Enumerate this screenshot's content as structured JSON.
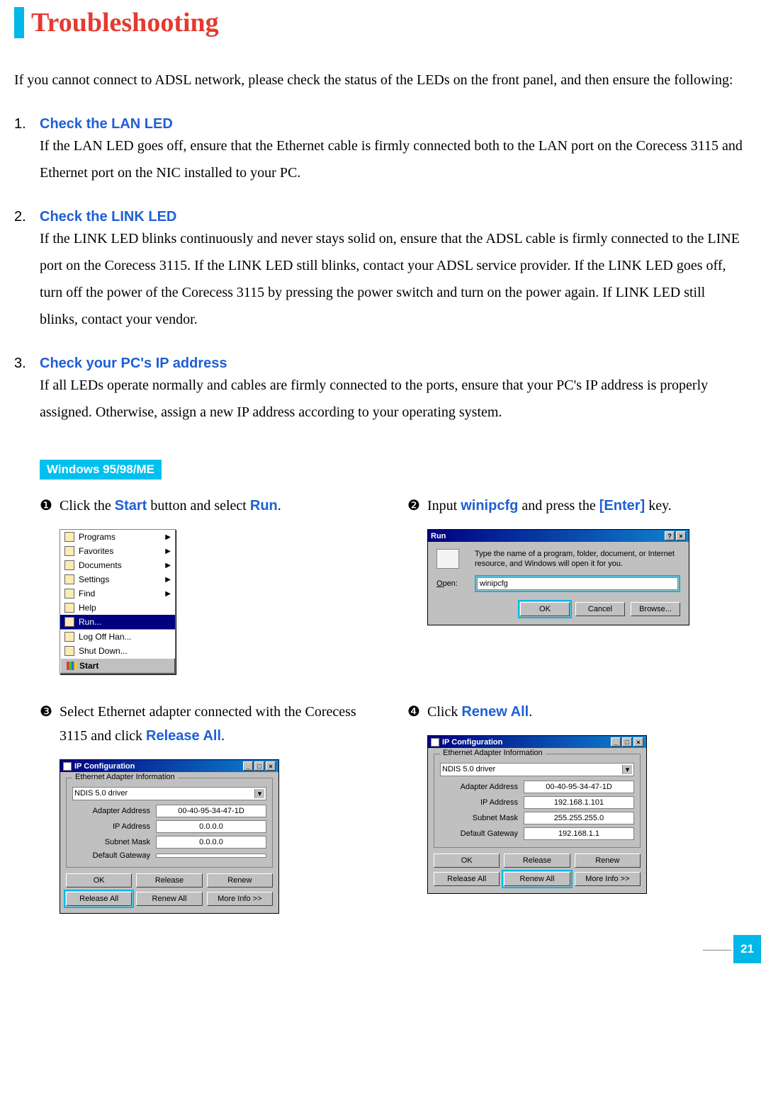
{
  "title": "Troubleshooting",
  "intro": "If you cannot connect to ADSL network, please check the status of the LEDs on the front panel, and then ensure the following:",
  "steps": [
    {
      "num": "1.",
      "title": "Check the LAN LED",
      "body": "If the LAN LED goes off, ensure that the Ethernet cable is firmly connected both to the LAN port on the Corecess 3115 and Ethernet port on the NIC installed to your PC."
    },
    {
      "num": "2.",
      "title": "Check the LINK LED",
      "body": "If the LINK LED blinks continuously and never stays solid on, ensure that the ADSL cable is firmly connected to the LINE port on the Corecess 3115. If the LINK LED still blinks, contact your ADSL service provider. If the LINK LED goes off, turn off the power of the Corecess 3115 by pressing the power switch and turn on the power again. If LINK LED still blinks, contact your vendor."
    },
    {
      "num": "3.",
      "title": "Check your PC's IP address",
      "body": "If all LEDs operate normally and cables are firmly connected to the ports, ensure that your PC's IP address is properly assigned. Otherwise, assign a new IP address according to your operating system."
    }
  ],
  "subhead": "Windows 95/98/ME",
  "sub": {
    "s1": {
      "num": "❶",
      "pre": "Click the ",
      "kw1": "Start",
      "mid": " button and select ",
      "kw2": "Run",
      "post": "."
    },
    "s2": {
      "num": "❷",
      "pre": "Input ",
      "kw1": "winipcfg",
      "mid": " and press the ",
      "kw2": "[Enter]",
      "post": " key."
    },
    "s3": {
      "num": "❸",
      "pre": "Select Ethernet adapter connected with the Corecess 3115 and click ",
      "kw1": "Release All",
      "post": "."
    },
    "s4": {
      "num": "❹",
      "pre": "Click ",
      "kw1": "Renew All",
      "post": "."
    }
  },
  "startmenu": {
    "items": [
      "Programs",
      "Favorites",
      "Documents",
      "Settings",
      "Find",
      "Help"
    ],
    "run": "Run...",
    "logoff": "Log Off Han...",
    "shutdown": "Shut Down...",
    "start": "Start"
  },
  "run_dialog": {
    "title": "Run",
    "help_btn": "?",
    "close_btn": "×",
    "text": "Type the name of a program, folder, document, or Internet resource, and Windows will open it for you.",
    "open_label": "Open:",
    "open_value": "winipcfg",
    "ok": "OK",
    "cancel": "Cancel",
    "browse": "Browse..."
  },
  "ipcfg_a": {
    "title": "IP Configuration",
    "group": "Ethernet Adapter Information",
    "driver": "NDIS 5.0 driver",
    "f1k": "Adapter Address",
    "f1v": "00-40-95-34-47-1D",
    "f2k": "IP Address",
    "f2v": "0.0.0.0",
    "f3k": "Subnet Mask",
    "f3v": "0.0.0.0",
    "f4k": "Default Gateway",
    "f4v": "",
    "btns": [
      "OK",
      "Release",
      "Renew",
      "Release All",
      "Renew All",
      "More Info >>"
    ],
    "highlight_index": 3
  },
  "ipcfg_b": {
    "title": "IP Configuration",
    "group": "Ethernet Adapter Information",
    "driver": "NDIS 5.0 driver",
    "f1k": "Adapter Address",
    "f1v": "00-40-95-34-47-1D",
    "f2k": "IP Address",
    "f2v": "192.168.1.101",
    "f3k": "Subnet Mask",
    "f3v": "255.255.255.0",
    "f4k": "Default Gateway",
    "f4v": "192.168.1.1",
    "btns": [
      "OK",
      "Release",
      "Renew",
      "Release All",
      "Renew All",
      "More Info >>"
    ],
    "highlight_index": 4
  },
  "page_number": "21",
  "colors": {
    "accent": "#00b7e8",
    "title": "#e33b2e",
    "keyword": "#1f5fd4",
    "win_titlebar": "#000080"
  }
}
